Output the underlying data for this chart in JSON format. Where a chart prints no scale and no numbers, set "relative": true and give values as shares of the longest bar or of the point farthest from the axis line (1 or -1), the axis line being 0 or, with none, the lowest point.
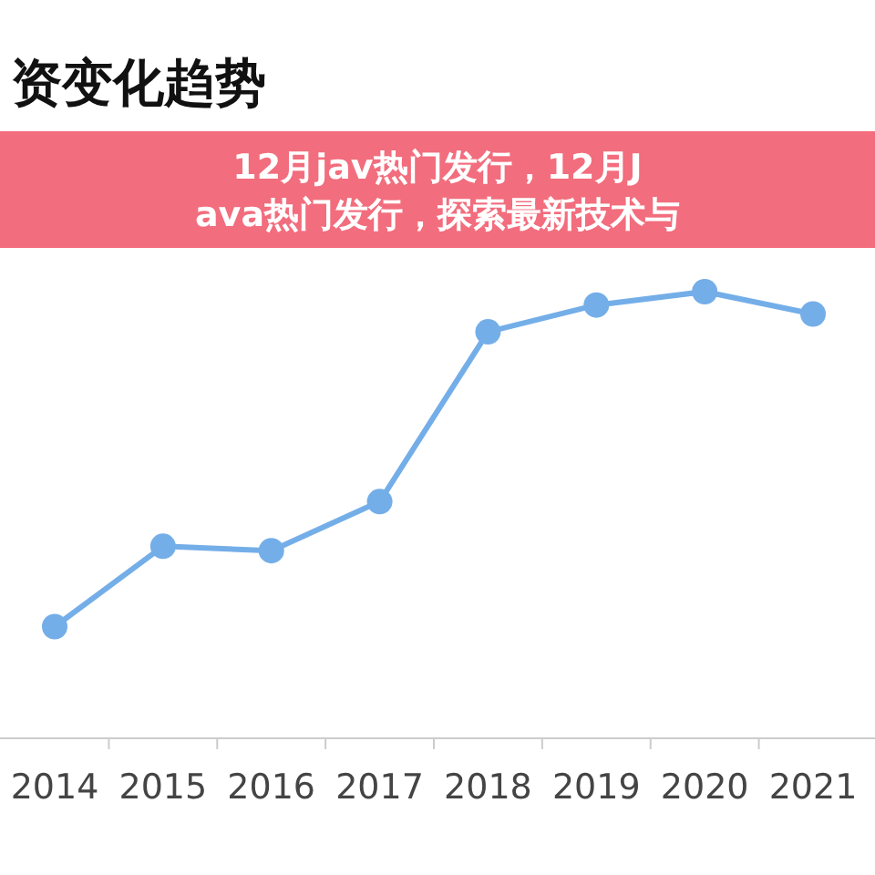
{
  "chart_data": {
    "type": "line",
    "title": "资变化趋势",
    "annotations": [
      "12月jav热门发行，12月Java热门发行，探索最新技术与"
    ],
    "relative": true,
    "categories": [
      "2014",
      "2015",
      "2016",
      "2017",
      "2018",
      "2019",
      "2020",
      "2021"
    ],
    "series": [
      {
        "color": "#74aee8",
        "values": [
          0.25,
          0.43,
          0.42,
          0.53,
          0.91,
          0.97,
          1,
          0.95
        ]
      }
    ],
    "marker": "circle"
  }
}
